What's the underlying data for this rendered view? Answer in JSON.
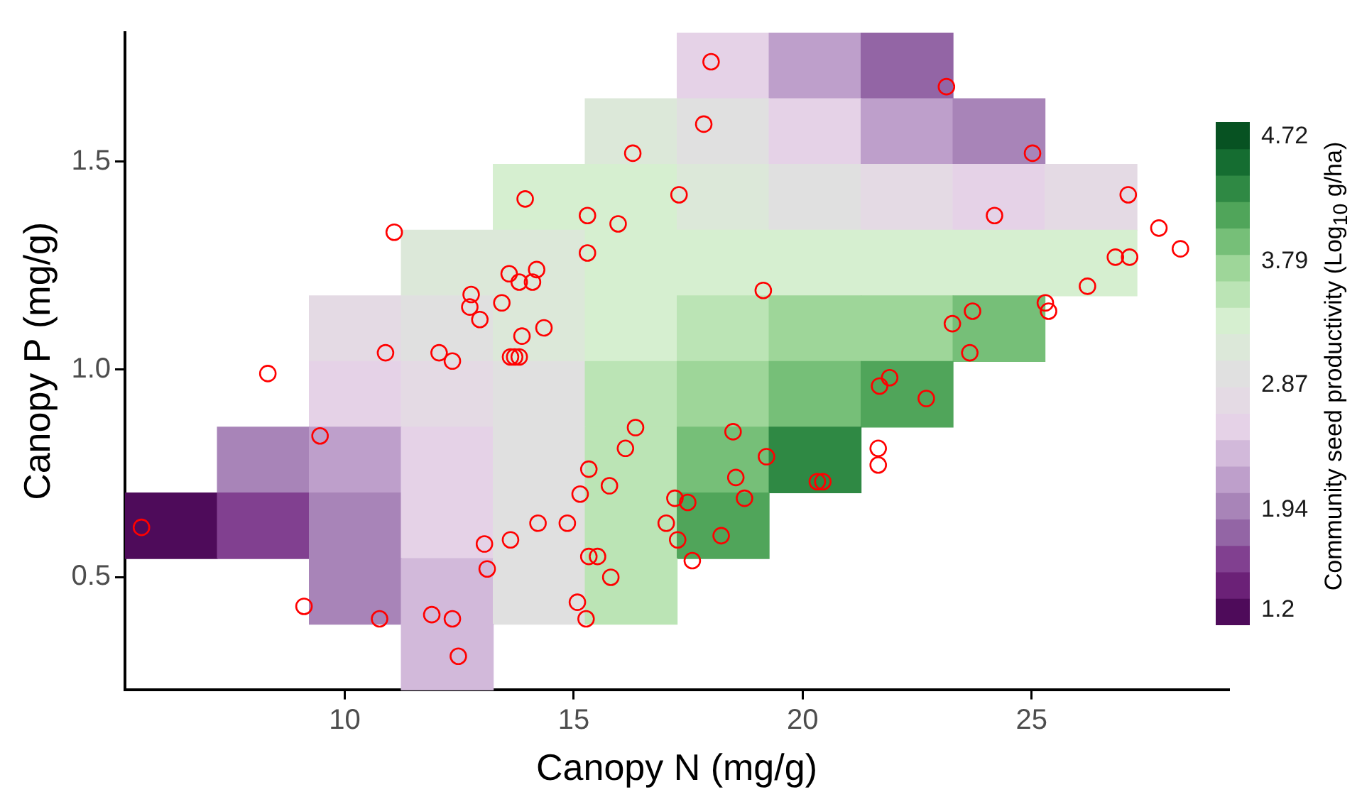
{
  "chart_data": {
    "type": "heatmap",
    "xlabel": "Canopy N (mg/g)",
    "ylabel": "Canopy P (mg/g)",
    "clabel": "Community seed productivity (Log$_{10}$ g/ha)",
    "xlim": [
      5.2,
      29.3
    ],
    "xticks": [
      10,
      15,
      20,
      25
    ],
    "ylim": [
      0.23,
      1.81
    ],
    "yticks": [
      0.5,
      {
        "value": 1,
        "label": "1.0"
      },
      1.5
    ],
    "clim": [
      1.09,
      4.83
    ],
    "cticks": [
      1.2,
      1.94,
      2.87,
      3.79,
      4.72
    ],
    "grid": false,
    "legend": false,
    "marker": "circle",
    "cells": [
      [
        null,
        null,
        null,
        null,
        null,
        null,
        2.57,
        2.17,
        1.78,
        null,
        null,
        null
      ],
      [
        null,
        null,
        null,
        null,
        null,
        3.16,
        2.96,
        2.57,
        2.17,
        1.98,
        null,
        null
      ],
      [
        null,
        null,
        null,
        null,
        3.35,
        3.35,
        3.16,
        2.96,
        2.76,
        2.57,
        2.76,
        null
      ],
      [
        null,
        null,
        null,
        3.16,
        3.16,
        3.35,
        3.35,
        3.35,
        3.35,
        3.35,
        3.35,
        null
      ],
      [
        null,
        null,
        2.76,
        2.96,
        3.16,
        3.35,
        3.55,
        3.75,
        3.75,
        3.95,
        null,
        null
      ],
      [
        null,
        null,
        2.57,
        2.76,
        2.96,
        3.55,
        3.75,
        3.95,
        4.14,
        null,
        null,
        null
      ],
      [
        null,
        1.98,
        2.17,
        2.57,
        2.96,
        3.55,
        3.95,
        4.34,
        null,
        null,
        null,
        null
      ],
      [
        1.19,
        1.58,
        1.98,
        2.57,
        2.96,
        3.55,
        4.14,
        null,
        null,
        null,
        null,
        null
      ],
      [
        null,
        null,
        1.98,
        2.37,
        2.96,
        3.55,
        null,
        null,
        null,
        null,
        null,
        null
      ],
      [
        null,
        null,
        null,
        2.37,
        null,
        null,
        null,
        null,
        null,
        null,
        null,
        null
      ]
    ],
    "series": [
      {
        "type": "scatter",
        "color": "#ff0000",
        "x": [
          5.56,
          8.32,
          11.08,
          9.46,
          9.11,
          10.76,
          10.89,
          11.9,
          12.35,
          12.48,
          12.06,
          12.35,
          13.05,
          13.11,
          12.76,
          12.73,
          12.95,
          13.43,
          13.59,
          13.81,
          14.1,
          14.19,
          13.94,
          13.87,
          13.62,
          13.71,
          13.81,
          13.62,
          14.22,
          14.35,
          14.86,
          15.14,
          15.3,
          15.3,
          15.33,
          15.33,
          15.08,
          15.27,
          15.52,
          15.81,
          15.78,
          15.97,
          16.29,
          16.35,
          16.13,
          17.02,
          17.21,
          17.49,
          17.3,
          17.27,
          17.59,
          17.84,
          18,
          18.22,
          18.48,
          18.54,
          18.73,
          19.14,
          19.21,
          20.32,
          20.44,
          21.68,
          21.9,
          21.65,
          21.65,
          22.7,
          23.27,
          23.71,
          23.65,
          24.19,
          23.14,
          25.02,
          25.3,
          25.37,
          26.22,
          26.83,
          27.11,
          27.14,
          27.78,
          28.25
        ],
        "values": [
          0.62,
          0.99,
          1.33,
          0.84,
          0.43,
          0.4,
          1.04,
          0.41,
          0.4,
          0.31,
          1.04,
          1.02,
          0.58,
          0.52,
          1.18,
          1.15,
          1.12,
          1.16,
          1.23,
          1.21,
          1.21,
          1.24,
          1.41,
          1.08,
          1.03,
          1.03,
          1.03,
          0.59,
          0.63,
          1.1,
          0.63,
          0.7,
          1.37,
          1.28,
          0.76,
          0.55,
          0.44,
          0.4,
          0.55,
          0.5,
          0.72,
          1.35,
          1.52,
          0.86,
          0.81,
          0.63,
          0.69,
          0.68,
          1.42,
          0.59,
          0.54,
          1.59,
          1.74,
          0.6,
          0.85,
          0.74,
          0.69,
          1.19,
          0.79,
          0.73,
          0.73,
          0.96,
          0.98,
          0.81,
          0.77,
          0.93,
          1.11,
          1.14,
          1.04,
          1.37,
          1.68,
          1.52,
          1.16,
          1.14,
          1.2,
          1.27,
          1.42,
          1.27,
          1.34,
          1.29
        ]
      }
    ]
  }
}
